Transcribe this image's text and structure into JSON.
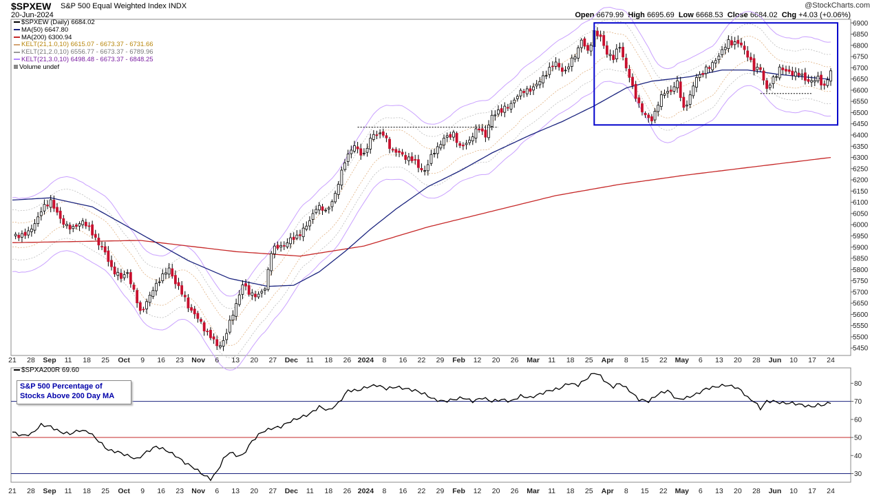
{
  "header": {
    "symbol": "$SPXEW",
    "name": "S&P 500 Equal Weighted Index",
    "exchange": "INDX",
    "date": "20-Jun-2024",
    "copyright": "@StockCharts.com",
    "ohlc": {
      "open_label": "Open",
      "open": "6679.99",
      "high_label": "High",
      "high": "6695.69",
      "low_label": "Low",
      "low": "6668.53",
      "close_label": "Close",
      "close": "6684.02",
      "chg_label": "Chg",
      "chg": "+4.03 (+0.06%)"
    }
  },
  "legend": {
    "main": "$SPXEW (Daily) 6684.02",
    "ma50": "MA(50) 6647.80",
    "ma200": "MA(200) 6300.94",
    "kelt1": "KELT(21,1.0,10) 6615.07 - 6673.37 - 6731.66",
    "kelt2": "KELT(21,2.0,10) 6556.77 - 6673.37 - 6789.96",
    "kelt3": "KELT(21,3.0,10) 6498.48 - 6673.37 - 6848.25",
    "volume": "Volume undef"
  },
  "indicator": {
    "legend": "$SPXA200R 69.60",
    "box_line1": "S&P 500 Percentage of",
    "box_line2": "Stocks Above 200 Day MA"
  },
  "colors": {
    "ma50": "#1a237e",
    "ma200": "#c62828",
    "up_candle": "#ffffff",
    "down_candle": "#c8102e",
    "kelt3": "#b388ff",
    "kelt1": "#d4a373",
    "kelt2": "#999999",
    "box": "#0000cc",
    "indicator_line": "#000000"
  },
  "chart_data": [
    {
      "type": "candlestick",
      "title": "$SPXEW (Daily)",
      "x_tick_labels": [
        "21",
        "28",
        "Sep",
        "11",
        "18",
        "25",
        "Oct",
        "9",
        "16",
        "23",
        "Nov",
        "6",
        "13",
        "20",
        "27",
        "Dec",
        "11",
        "18",
        "26",
        "2024",
        "8",
        "16",
        "22",
        "29",
        "Feb",
        "12",
        "20",
        "26",
        "Mar",
        "11",
        "18",
        "25",
        "Apr",
        "8",
        "15",
        "22",
        "May",
        "6",
        "13",
        "20",
        "28",
        "Jun",
        "10",
        "17",
        "24"
      ],
      "y_tick_labels": [
        "5450",
        "5500",
        "5550",
        "5600",
        "5650",
        "5700",
        "5750",
        "5800",
        "5850",
        "5900",
        "5950",
        "6000",
        "6050",
        "6100",
        "6150",
        "6200",
        "6250",
        "6300",
        "6350",
        "6400",
        "6450",
        "6500",
        "6550",
        "6600",
        "6650",
        "6700",
        "6750",
        "6800",
        "6850",
        "6900"
      ],
      "ylim": [
        5420,
        6910
      ],
      "close_anchors": [
        [
          0,
          5950
        ],
        [
          5,
          5960
        ],
        [
          9,
          6060
        ],
        [
          12,
          6110
        ],
        [
          15,
          6020
        ],
        [
          19,
          5980
        ],
        [
          22,
          6020
        ],
        [
          25,
          5960
        ],
        [
          28,
          5900
        ],
        [
          31,
          5810
        ],
        [
          34,
          5760
        ],
        [
          36,
          5790
        ],
        [
          38,
          5700
        ],
        [
          40,
          5610
        ],
        [
          43,
          5680
        ],
        [
          46,
          5760
        ],
        [
          49,
          5800
        ],
        [
          52,
          5720
        ],
        [
          55,
          5640
        ],
        [
          58,
          5580
        ],
        [
          61,
          5520
        ],
        [
          64,
          5460
        ],
        [
          66,
          5480
        ],
        [
          68,
          5560
        ],
        [
          70,
          5650
        ],
        [
          72,
          5730
        ],
        [
          74,
          5700
        ],
        [
          77,
          5680
        ],
        [
          79,
          5720
        ],
        [
          81,
          5880
        ],
        [
          83,
          5900
        ],
        [
          86,
          5920
        ],
        [
          89,
          5950
        ],
        [
          92,
          5990
        ],
        [
          95,
          6080
        ],
        [
          98,
          6060
        ],
        [
          101,
          6130
        ],
        [
          104,
          6290
        ],
        [
          107,
          6350
        ],
        [
          110,
          6310
        ],
        [
          113,
          6410
        ],
        [
          116,
          6400
        ],
        [
          119,
          6330
        ],
        [
          122,
          6310
        ],
        [
          125,
          6290
        ],
        [
          127,
          6260
        ],
        [
          129,
          6240
        ],
        [
          132,
          6330
        ],
        [
          135,
          6380
        ],
        [
          138,
          6410
        ],
        [
          140,
          6340
        ],
        [
          143,
          6380
        ],
        [
          146,
          6430
        ],
        [
          148,
          6400
        ],
        [
          150,
          6480
        ],
        [
          152,
          6510
        ],
        [
          155,
          6520
        ],
        [
          158,
          6580
        ],
        [
          161,
          6600
        ],
        [
          164,
          6620
        ],
        [
          167,
          6680
        ],
        [
          170,
          6720
        ],
        [
          173,
          6680
        ],
        [
          176,
          6760
        ],
        [
          178,
          6820
        ],
        [
          180,
          6770
        ],
        [
          182,
          6860
        ],
        [
          184,
          6830
        ],
        [
          186,
          6770
        ],
        [
          188,
          6740
        ],
        [
          190,
          6800
        ],
        [
          192,
          6700
        ],
        [
          194,
          6610
        ],
        [
          196,
          6540
        ],
        [
          198,
          6480
        ],
        [
          200,
          6470
        ],
        [
          202,
          6540
        ],
        [
          204,
          6590
        ],
        [
          206,
          6600
        ],
        [
          208,
          6630
        ],
        [
          210,
          6520
        ],
        [
          212,
          6570
        ],
        [
          214,
          6660
        ],
        [
          216,
          6680
        ],
        [
          218,
          6700
        ],
        [
          220,
          6740
        ],
        [
          222,
          6770
        ],
        [
          224,
          6820
        ],
        [
          226,
          6810
        ],
        [
          228,
          6800
        ],
        [
          230,
          6760
        ],
        [
          232,
          6690
        ],
        [
          234,
          6700
        ],
        [
          236,
          6600
        ],
        [
          238,
          6650
        ],
        [
          240,
          6700
        ],
        [
          242,
          6680
        ],
        [
          244,
          6680
        ],
        [
          246,
          6670
        ],
        [
          248,
          6650
        ],
        [
          250,
          6640
        ],
        [
          252,
          6650
        ],
        [
          254,
          6620
        ],
        [
          256,
          6680
        ]
      ],
      "ma200_anchors": [
        [
          0,
          5920
        ],
        [
          40,
          5930
        ],
        [
          70,
          5880
        ],
        [
          90,
          5860
        ],
        [
          110,
          5905
        ],
        [
          130,
          5990
        ],
        [
          150,
          6060
        ],
        [
          170,
          6130
        ],
        [
          190,
          6180
        ],
        [
          210,
          6220
        ],
        [
          230,
          6255
        ],
        [
          256,
          6300
        ]
      ],
      "ma50_anchors": [
        [
          0,
          6110
        ],
        [
          12,
          6120
        ],
        [
          25,
          6080
        ],
        [
          40,
          5960
        ],
        [
          55,
          5840
        ],
        [
          68,
          5760
        ],
        [
          80,
          5725
        ],
        [
          88,
          5730
        ],
        [
          96,
          5790
        ],
        [
          104,
          5880
        ],
        [
          112,
          5980
        ],
        [
          120,
          6070
        ],
        [
          130,
          6170
        ],
        [
          140,
          6240
        ],
        [
          150,
          6320
        ],
        [
          162,
          6400
        ],
        [
          172,
          6460
        ],
        [
          182,
          6530
        ],
        [
          192,
          6610
        ],
        [
          200,
          6640
        ],
        [
          212,
          6660
        ],
        [
          222,
          6690
        ],
        [
          230,
          6690
        ],
        [
          240,
          6670
        ],
        [
          256,
          6648
        ]
      ]
    },
    {
      "type": "line",
      "title": "$SPXA200R",
      "y_tick_labels": [
        "30",
        "40",
        "50",
        "60",
        "70",
        "80"
      ],
      "ylim": [
        26,
        87
      ],
      "reference_lines": [
        70,
        50,
        30
      ],
      "points": [
        [
          0,
          53
        ],
        [
          3,
          51
        ],
        [
          6,
          52
        ],
        [
          9,
          57
        ],
        [
          12,
          56
        ],
        [
          15,
          53
        ],
        [
          18,
          52
        ],
        [
          21,
          54
        ],
        [
          24,
          53
        ],
        [
          27,
          48
        ],
        [
          30,
          43
        ],
        [
          33,
          42
        ],
        [
          36,
          40
        ],
        [
          39,
          38
        ],
        [
          42,
          42
        ],
        [
          45,
          45
        ],
        [
          48,
          43
        ],
        [
          51,
          40
        ],
        [
          54,
          36
        ],
        [
          57,
          33
        ],
        [
          60,
          29
        ],
        [
          62,
          27
        ],
        [
          64,
          31
        ],
        [
          66,
          38
        ],
        [
          68,
          42
        ],
        [
          70,
          40
        ],
        [
          72,
          40
        ],
        [
          75,
          48
        ],
        [
          78,
          53
        ],
        [
          81,
          55
        ],
        [
          84,
          56
        ],
        [
          87,
          59
        ],
        [
          90,
          61
        ],
        [
          93,
          63
        ],
        [
          96,
          67
        ],
        [
          99,
          65
        ],
        [
          102,
          69
        ],
        [
          105,
          76
        ],
        [
          108,
          76
        ],
        [
          111,
          78
        ],
        [
          114,
          79
        ],
        [
          117,
          77
        ],
        [
          120,
          78
        ],
        [
          123,
          77
        ],
        [
          126,
          76
        ],
        [
          129,
          74
        ],
        [
          132,
          71
        ],
        [
          135,
          70
        ],
        [
          138,
          71
        ],
        [
          141,
          72
        ],
        [
          144,
          70
        ],
        [
          147,
          72
        ],
        [
          150,
          70
        ],
        [
          153,
          71
        ],
        [
          156,
          70
        ],
        [
          159,
          73
        ],
        [
          162,
          72
        ],
        [
          165,
          74
        ],
        [
          168,
          76
        ],
        [
          171,
          77
        ],
        [
          174,
          80
        ],
        [
          177,
          79
        ],
        [
          180,
          83
        ],
        [
          182,
          86
        ],
        [
          184,
          84
        ],
        [
          186,
          80
        ],
        [
          188,
          78
        ],
        [
          190,
          80
        ],
        [
          193,
          76
        ],
        [
          196,
          71
        ],
        [
          199,
          70
        ],
        [
          202,
          74
        ],
        [
          205,
          76
        ],
        [
          208,
          71
        ],
        [
          211,
          72
        ],
        [
          214,
          74
        ],
        [
          217,
          77
        ],
        [
          220,
          78
        ],
        [
          223,
          79
        ],
        [
          226,
          78
        ],
        [
          228,
          76
        ],
        [
          230,
          72
        ],
        [
          232,
          70
        ],
        [
          234,
          66
        ],
        [
          236,
          70
        ],
        [
          238,
          70
        ],
        [
          241,
          69
        ],
        [
          244,
          69
        ],
        [
          247,
          68
        ],
        [
          250,
          67
        ],
        [
          252,
          68
        ],
        [
          254,
          68
        ],
        [
          256,
          69.6
        ]
      ]
    }
  ]
}
